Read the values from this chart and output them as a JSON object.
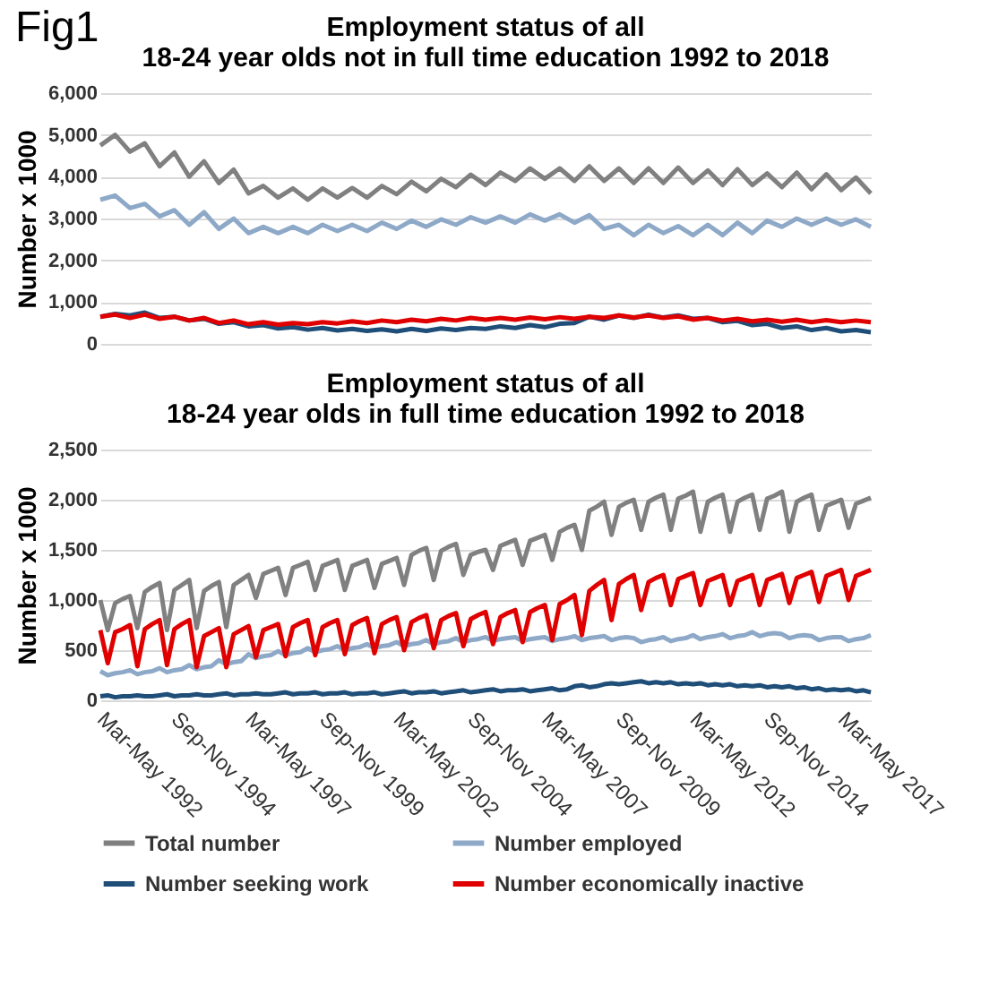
{
  "chart_data": [
    {
      "type": "line",
      "title": "Employment status of all\n18-24 year olds not in full time education 1992 to 2018",
      "ylabel": "Number x 1000",
      "annotations": [
        "Fig1"
      ],
      "ylim": [
        0,
        6000
      ],
      "yticks": [
        {
          "value": 0,
          "label": "0"
        },
        {
          "value": 1000,
          "label": "1,000"
        },
        {
          "value": 2000,
          "label": "2,000"
        },
        {
          "value": 3000,
          "label": "3,000"
        },
        {
          "value": 4000,
          "label": "4,000"
        },
        {
          "value": 5000,
          "label": "5,000"
        },
        {
          "value": 6000,
          "label": "6,000"
        }
      ],
      "grid": "y",
      "tick_labels": "y",
      "line_style": "solid",
      "categories": [
        null,
        null,
        null,
        null,
        null,
        null,
        null,
        null,
        null,
        null,
        null,
        null,
        null,
        null,
        null,
        null,
        null,
        null,
        null,
        null,
        null,
        null,
        null,
        null,
        null,
        null,
        null,
        null,
        null,
        null,
        null,
        null,
        null,
        null,
        null,
        null,
        null,
        null,
        null,
        null,
        null,
        null,
        null,
        null,
        null,
        null,
        null,
        null,
        null,
        null,
        null,
        null,
        null
      ],
      "series": [
        {
          "color": "#808080",
          "values": [
            4750,
            5000,
            4600,
            4800,
            4250,
            4580,
            4000,
            4370,
            3850,
            4170,
            3600,
            3780,
            3500,
            3720,
            3450,
            3720,
            3500,
            3730,
            3500,
            3780,
            3580,
            3880,
            3650,
            3950,
            3750,
            4050,
            3800,
            4100,
            3900,
            4200,
            3950,
            4200,
            3900,
            4250,
            3900,
            4200,
            3850,
            4200,
            3850,
            4220,
            3850,
            4150,
            3800,
            4180,
            3800,
            4080,
            3750,
            4100,
            3700,
            4060,
            3680,
            3980,
            3600
          ]
        },
        {
          "color": "#8ea9c8",
          "values": [
            3450,
            3550,
            3250,
            3350,
            3050,
            3200,
            2850,
            3150,
            2750,
            3000,
            2650,
            2800,
            2650,
            2800,
            2650,
            2850,
            2700,
            2850,
            2700,
            2900,
            2750,
            2950,
            2800,
            2980,
            2850,
            3030,
            2900,
            3050,
            2900,
            3100,
            2950,
            3100,
            2900,
            3080,
            2750,
            2850,
            2600,
            2850,
            2650,
            2820,
            2600,
            2850,
            2600,
            2900,
            2650,
            2950,
            2800,
            3000,
            2850,
            3000,
            2850,
            2980,
            2800
          ]
        },
        {
          "color": "#1f4e79",
          "values": [
            650,
            720,
            680,
            750,
            620,
            650,
            560,
            600,
            480,
            520,
            420,
            450,
            370,
            400,
            340,
            380,
            320,
            360,
            310,
            350,
            300,
            360,
            310,
            370,
            330,
            380,
            360,
            420,
            380,
            450,
            400,
            480,
            500,
            650,
            580,
            680,
            620,
            700,
            630,
            680,
            600,
            620,
            520,
            550,
            450,
            480,
            380,
            420,
            330,
            380,
            300,
            330,
            280
          ]
        },
        {
          "color": "#e00000",
          "values": [
            650,
            700,
            620,
            700,
            600,
            650,
            560,
            620,
            500,
            560,
            470,
            520,
            460,
            500,
            470,
            520,
            490,
            540,
            500,
            560,
            520,
            580,
            540,
            600,
            560,
            620,
            580,
            620,
            580,
            630,
            590,
            640,
            600,
            650,
            620,
            680,
            630,
            680,
            620,
            660,
            580,
            620,
            560,
            600,
            540,
            580,
            530,
            580,
            520,
            570,
            520,
            560,
            520
          ]
        }
      ]
    },
    {
      "type": "line",
      "title": "Employment status of all\n18-24 year olds in full time education 1992 to 2018",
      "ylabel": "Number x 1000",
      "ylim": [
        0,
        2500
      ],
      "yticks": [
        {
          "value": 0,
          "label": "0"
        },
        {
          "value": 500,
          "label": "500"
        },
        {
          "value": 1000,
          "label": "1,000"
        },
        {
          "value": 1500,
          "label": "1,500"
        },
        {
          "value": 2000,
          "label": "2,000"
        },
        {
          "value": 2500,
          "label": "2,500"
        }
      ],
      "grid": "y",
      "legend": "bottom",
      "line_style": "solid",
      "categories": [
        "Mar-May 1992",
        null,
        null,
        null,
        null,
        null,
        null,
        null,
        null,
        null,
        "Sep-Nov 1994",
        null,
        null,
        null,
        null,
        null,
        null,
        null,
        null,
        null,
        "Mar-May 1997",
        null,
        null,
        null,
        null,
        null,
        null,
        null,
        null,
        null,
        "Sep-Nov 1999",
        null,
        null,
        null,
        null,
        null,
        null,
        null,
        null,
        null,
        "Mar-May 2002",
        null,
        null,
        null,
        null,
        null,
        null,
        null,
        null,
        null,
        "Sep-Nov 2004",
        null,
        null,
        null,
        null,
        null,
        null,
        null,
        null,
        null,
        "Mar-May 2007",
        null,
        null,
        null,
        null,
        null,
        null,
        null,
        null,
        null,
        "Sep-Nov 2009",
        null,
        null,
        null,
        null,
        null,
        null,
        null,
        null,
        null,
        "Mar-May 2012",
        null,
        null,
        null,
        null,
        null,
        null,
        null,
        null,
        null,
        "Sep-Nov 2014",
        null,
        null,
        null,
        null,
        null,
        null,
        null,
        null,
        null,
        "Mar-May 2017",
        null,
        null,
        null,
        null
      ],
      "series": [
        {
          "name": "Total number",
          "color": "#808080",
          "values": [
            1000,
            700,
            970,
            1010,
            1040,
            720,
            1080,
            1130,
            1170,
            700,
            1100,
            1150,
            1200,
            720,
            1090,
            1140,
            1180,
            730,
            1150,
            1200,
            1250,
            1020,
            1260,
            1290,
            1320,
            1050,
            1320,
            1350,
            1380,
            1100,
            1340,
            1370,
            1400,
            1100,
            1340,
            1370,
            1400,
            1120,
            1360,
            1390,
            1420,
            1150,
            1450,
            1490,
            1520,
            1200,
            1490,
            1530,
            1560,
            1250,
            1450,
            1480,
            1500,
            1300,
            1540,
            1570,
            1600,
            1350,
            1590,
            1620,
            1650,
            1400,
            1680,
            1720,
            1750,
            1500,
            1890,
            1930,
            1980,
            1650,
            1930,
            1970,
            2000,
            1700,
            1980,
            2020,
            2050,
            1700,
            2010,
            2040,
            2080,
            1680,
            1980,
            2020,
            2050,
            1680,
            1980,
            2020,
            2050,
            1700,
            2010,
            2040,
            2080,
            1680,
            1980,
            2020,
            2050,
            1700,
            1940,
            1970,
            2000,
            1720,
            1960,
            1990,
            2020
          ]
        },
        {
          "name": "Number employed",
          "color": "#8ea9c8",
          "values": [
            290,
            250,
            270,
            280,
            300,
            260,
            280,
            290,
            320,
            280,
            300,
            310,
            350,
            310,
            330,
            340,
            400,
            360,
            380,
            390,
            460,
            420,
            440,
            450,
            490,
            450,
            470,
            480,
            520,
            480,
            500,
            510,
            540,
            500,
            520,
            530,
            560,
            520,
            540,
            550,
            580,
            540,
            560,
            570,
            600,
            560,
            580,
            590,
            620,
            580,
            600,
            610,
            630,
            590,
            610,
            620,
            630,
            590,
            610,
            620,
            630,
            590,
            610,
            620,
            640,
            600,
            620,
            630,
            640,
            600,
            620,
            630,
            620,
            580,
            600,
            610,
            630,
            590,
            610,
            620,
            650,
            610,
            630,
            640,
            660,
            620,
            640,
            650,
            680,
            640,
            660,
            670,
            660,
            620,
            640,
            650,
            640,
            600,
            620,
            630,
            630,
            590,
            610,
            620,
            650
          ]
        },
        {
          "name": "Number seeking work",
          "color": "#1f4e79",
          "values": [
            40,
            50,
            30,
            40,
            40,
            50,
            40,
            40,
            50,
            60,
            40,
            50,
            50,
            60,
            50,
            50,
            60,
            70,
            50,
            60,
            60,
            70,
            60,
            60,
            70,
            80,
            60,
            70,
            70,
            80,
            60,
            70,
            70,
            80,
            60,
            70,
            70,
            80,
            60,
            70,
            80,
            90,
            70,
            80,
            80,
            90,
            70,
            80,
            90,
            100,
            80,
            90,
            100,
            110,
            90,
            100,
            100,
            110,
            90,
            100,
            110,
            120,
            100,
            110,
            140,
            150,
            130,
            140,
            160,
            170,
            160,
            170,
            180,
            190,
            170,
            180,
            170,
            180,
            160,
            170,
            160,
            170,
            150,
            160,
            150,
            160,
            140,
            150,
            140,
            150,
            130,
            140,
            130,
            140,
            120,
            130,
            110,
            120,
            100,
            110,
            100,
            110,
            90,
            100,
            80
          ]
        },
        {
          "name": "Number economically inactive",
          "color": "#e00000",
          "values": [
            700,
            370,
            680,
            710,
            750,
            340,
            710,
            760,
            800,
            350,
            710,
            760,
            800,
            330,
            640,
            680,
            720,
            330,
            660,
            700,
            740,
            430,
            700,
            730,
            760,
            440,
            730,
            770,
            800,
            450,
            730,
            770,
            800,
            460,
            750,
            790,
            820,
            470,
            760,
            800,
            830,
            500,
            780,
            820,
            850,
            520,
            800,
            840,
            870,
            540,
            810,
            850,
            880,
            560,
            830,
            870,
            900,
            580,
            880,
            920,
            950,
            600,
            960,
            1000,
            1050,
            650,
            1090,
            1150,
            1200,
            800,
            1160,
            1210,
            1250,
            900,
            1180,
            1220,
            1250,
            950,
            1210,
            1240,
            1270,
            950,
            1190,
            1220,
            1250,
            950,
            1190,
            1220,
            1250,
            950,
            1200,
            1230,
            1260,
            970,
            1220,
            1250,
            1280,
            980,
            1240,
            1270,
            1300,
            1000,
            1240,
            1270,
            1300
          ]
        }
      ]
    }
  ]
}
